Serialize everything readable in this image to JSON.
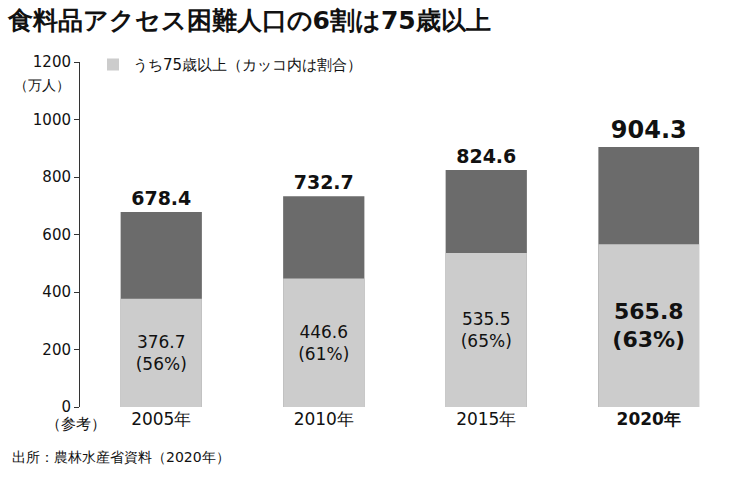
{
  "chart_data": {
    "type": "bar",
    "title": "食料品アクセス困難人口の6割は75歳以上",
    "ylabel": "（万人）",
    "x_note": "（参考）",
    "source": "出所：農林水産省資料（2020年）",
    "categories": [
      "2005年",
      "2010年",
      "2015年",
      "2020年"
    ],
    "series": [
      {
        "values": [
          678.4,
          732.7,
          824.6,
          904.3
        ],
        "color": "#6b6b6b"
      },
      {
        "name": "うち75歳以上（カッコ内は割合）",
        "values": [
          376.7,
          446.6,
          535.5,
          565.8
        ],
        "value_labels": [
          "376.7 (56%)",
          "446.6 (61%)",
          "535.5 (65%)",
          "565.8 (63%)"
        ],
        "color": "#cccccc"
      }
    ],
    "stacked": false,
    "data_labels": true,
    "ylim": [
      0,
      1200
    ],
    "yticks": [
      0,
      200,
      400,
      600,
      800,
      1000,
      1200
    ],
    "grid": false,
    "legend": "upper left"
  }
}
